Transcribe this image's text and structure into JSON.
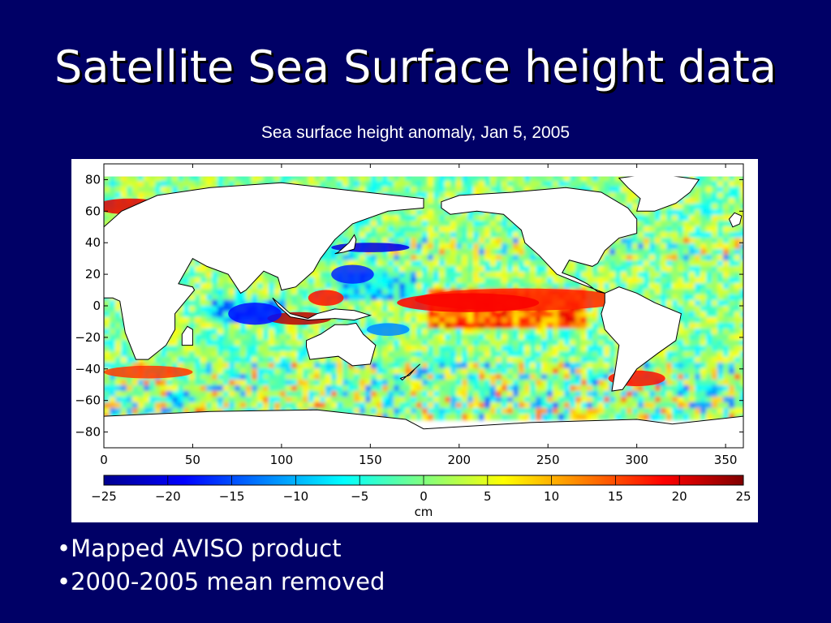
{
  "slide": {
    "title": "Satellite Sea Surface height data",
    "subtitle": "Sea surface height anomaly, Jan 5, 2005",
    "bullets": [
      "•Mapped AVISO product",
      "•2000-2005 mean removed"
    ]
  },
  "map": {
    "type": "heatmap",
    "x_axis": {
      "min": 0,
      "max": 360,
      "ticks": [
        "0",
        "50",
        "100",
        "150",
        "200",
        "250",
        "300",
        "350"
      ]
    },
    "y_axis": {
      "min": -90,
      "max": 90,
      "ticks": [
        "80",
        "60",
        "40",
        "20",
        "0",
        "−20",
        "−40",
        "−60",
        "−80"
      ]
    },
    "colorbar": {
      "label": "cm",
      "min": -25,
      "max": 25,
      "ticks": [
        "−25",
        "−20",
        "−15",
        "−10",
        "−5",
        "0",
        "5",
        "10",
        "15",
        "20",
        "25"
      ],
      "colormap": "jet"
    },
    "colors": {
      "ocean_base": "#7ee0a8",
      "land": "#ffffff",
      "coast": "#000000",
      "high": "#aa0000",
      "low": "#0000aa"
    }
  }
}
